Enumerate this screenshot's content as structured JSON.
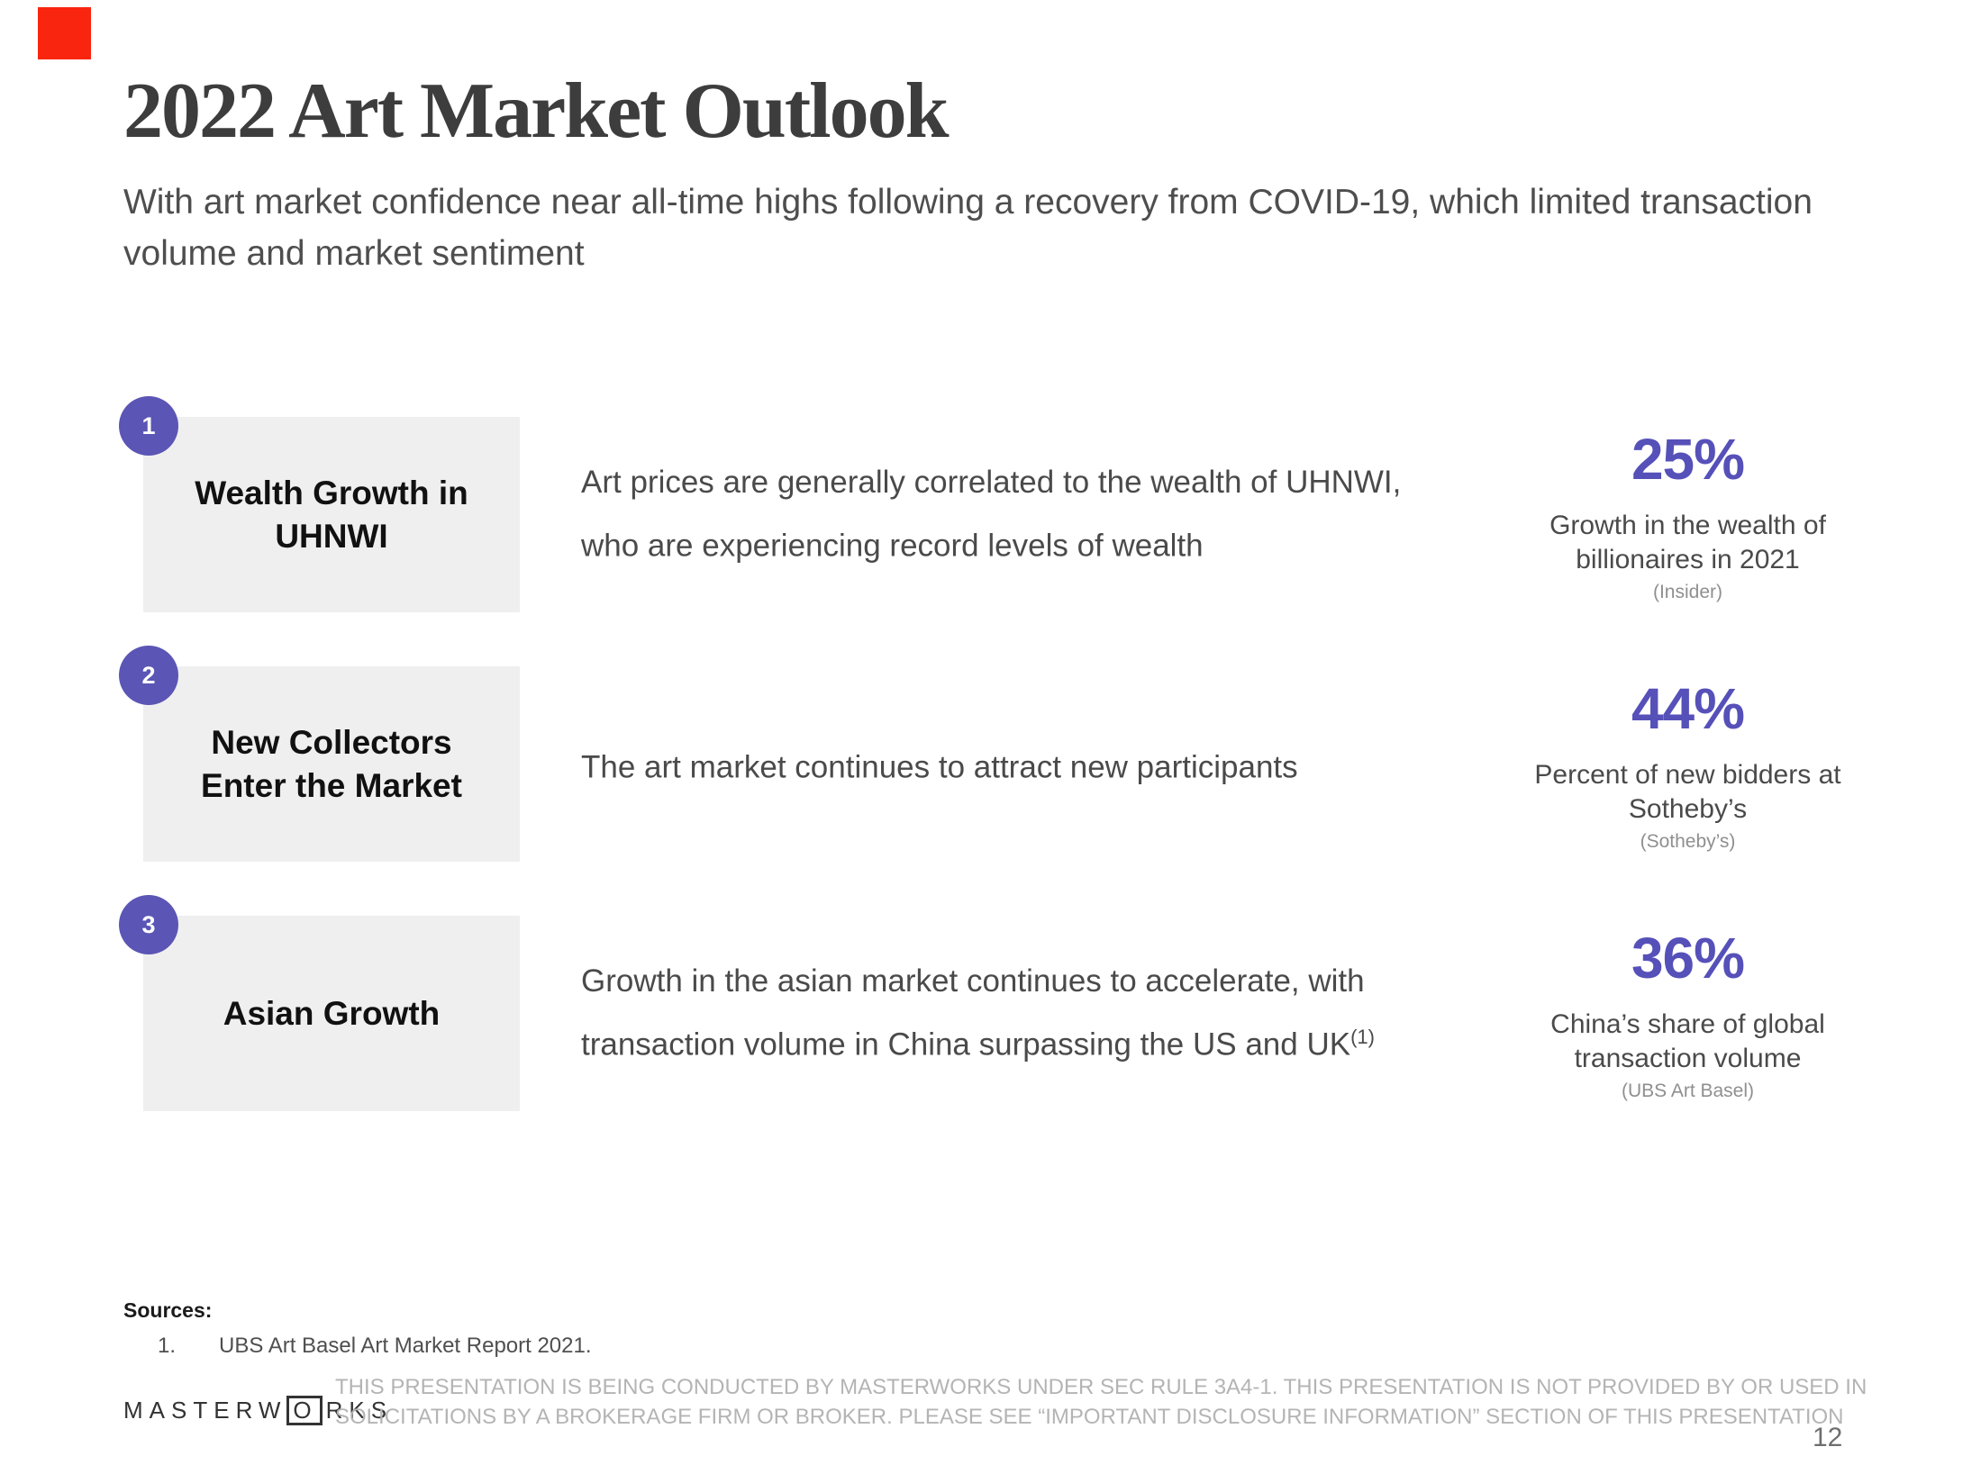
{
  "slide": {
    "title": "2022 Art Market Outlook",
    "subtitle": "With art market confidence near all-time highs following a recovery from COVID-19, which limited transaction volume and market sentiment",
    "page_number": "12"
  },
  "rows": [
    {
      "number": "1",
      "label": "Wealth Growth in UHNWI",
      "description": "Art prices are generally correlated to the wealth of UHNWI, who are experiencing record levels of wealth",
      "stat_value": "25%",
      "stat_label": "Growth in the wealth of billionaires in 2021",
      "stat_source": "(Insider)"
    },
    {
      "number": "2",
      "label": "New Collectors Enter the Market",
      "description": "The art market continues to attract new participants",
      "stat_value": "44%",
      "stat_label": "Percent of new bidders at Sotheby’s",
      "stat_source": "(Sotheby’s)"
    },
    {
      "number": "3",
      "label": "Asian Growth",
      "description": "Growth in the asian market continues to accelerate, with transaction volume in China surpassing the US and UK",
      "description_sup": "(1)",
      "stat_value": "36%",
      "stat_label": "China’s share of global transaction volume",
      "stat_source": "(UBS Art Basel)"
    }
  ],
  "sources": {
    "heading": "Sources:",
    "items": [
      {
        "index": "1.",
        "text": "UBS Art Basel Art Market Report 2021."
      }
    ]
  },
  "footer": {
    "logo_prefix": "MASTERW",
    "logo_boxed_letter": "O",
    "logo_suffix": "RKS",
    "disclaimer": "THIS PRESENTATION  IS BEING CONDUCTED BY MASTERWORKS UNDER SEC RULE 3A4-1. THIS PRESENTATION  IS NOT PROVIDED BY OR USED IN SOLICITATIONS BY A BROKERAGE FIRM OR BROKER. PLEASE SEE “IMPORTANT DISCLOSURE INFORMATION” SECTION OF THIS PRESENTATION"
  },
  "colors": {
    "accent_red": "#F9250F",
    "badge_purple": "#5B55B5",
    "stat_purple": "#5650B9",
    "box_gray": "#F0EFEF"
  }
}
